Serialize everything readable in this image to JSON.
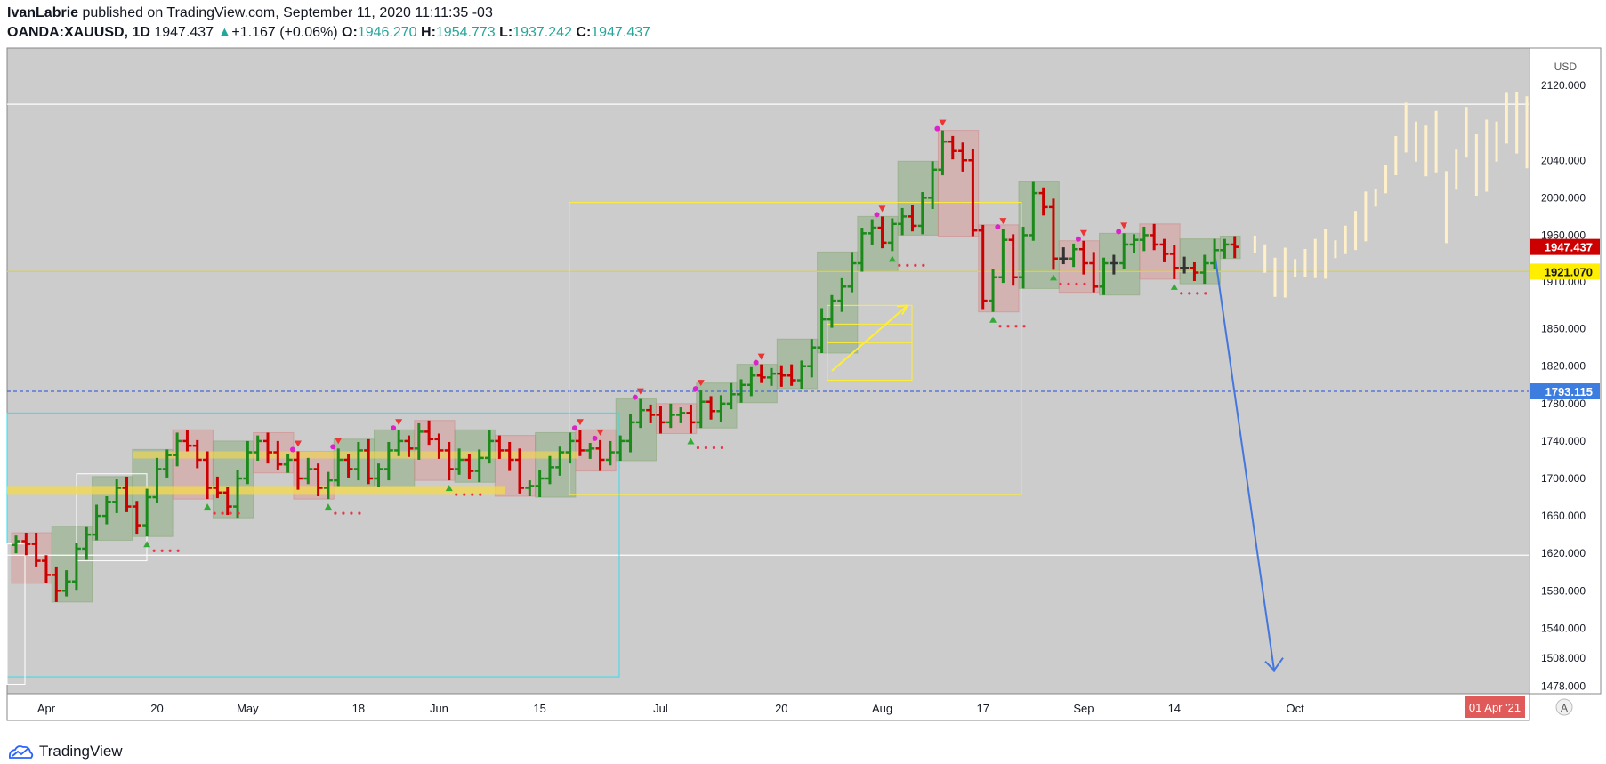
{
  "header": {
    "author": "IvanLabrie",
    "published_text": "published on TradingView.com, September 11, 2020 11:11:35 -03",
    "symbol": "OANDA:XAUUSD, 1D",
    "last": "1947.437",
    "change": "+1.167 (+0.06%)",
    "o_label": "O:",
    "o_value": "1946.270",
    "h_label": "H:",
    "h_value": "1954.773",
    "l_label": "L:",
    "l_value": "1937.242",
    "c_label": "C:",
    "c_value": "1947.437"
  },
  "footer": {
    "brand": "TradingView"
  },
  "currency": "USD",
  "auto_label": "A",
  "colors": {
    "pane": "#cccccc",
    "up": "#1b8a1b",
    "down": "#cc0000",
    "neutral": "#333333",
    "yellow": "#ffee33",
    "cyan": "#33ddee",
    "blue": "#4477dd",
    "projection": "#fff0c8",
    "magenta": "#dd22cc",
    "red_dots": "#ee3344"
  },
  "chart_data": {
    "type": "ohlc",
    "y_axis": {
      "range": [
        1470,
        2160
      ],
      "ticks": [
        "2120.000",
        "2040.000",
        "2000.000",
        "1960.000",
        "1910.000",
        "1860.000",
        "1820.000",
        "1780.000",
        "1740.000",
        "1700.000",
        "1660.000",
        "1620.000",
        "1580.000",
        "1540.000",
        "1508.000",
        "1478.000"
      ],
      "tick_values": [
        2120,
        2040,
        2000,
        1960,
        1910,
        1860,
        1820,
        1780,
        1740,
        1700,
        1660,
        1620,
        1580,
        1540,
        1508,
        1478
      ]
    },
    "x_axis": {
      "labels": [
        "Apr",
        "20",
        "May",
        "18",
        "Jun",
        "15",
        "Jul",
        "20",
        "Aug",
        "17",
        "Sep",
        "14",
        "Oct"
      ],
      "label_bar_index": [
        3,
        14,
        23,
        34,
        42,
        52,
        64,
        76,
        86,
        96,
        106,
        115,
        127
      ]
    },
    "price_tags": [
      {
        "value": 1947.437,
        "label": "1947.437",
        "color": "#cc0000",
        "text_color": "#ffffff"
      },
      {
        "value": 1921.07,
        "label": "1921.070",
        "color": "#ffee00",
        "text_color": "#131722"
      },
      {
        "value": 1793.115,
        "label": "1793.115",
        "color": "#3d7de0",
        "text_color": "#ffffff"
      }
    ],
    "date_tag": "01 Apr '21",
    "horizontal_lines": [
      {
        "value": 2100,
        "color": "#ffffff"
      },
      {
        "value": 1921.07,
        "color": "#e6d800"
      },
      {
        "value": 1793.115,
        "color": "#4466dd",
        "dashed": true
      },
      {
        "value": 1618,
        "color": "#ffffff"
      }
    ],
    "closes": [
      1633,
      1630,
      1612,
      1597,
      1580,
      1590,
      1625,
      1640,
      1660,
      1675,
      1690,
      1670,
      1650,
      1680,
      1710,
      1725,
      1740,
      1735,
      1720,
      1690,
      1685,
      1670,
      1700,
      1728,
      1740,
      1728,
      1715,
      1720,
      1700,
      1710,
      1690,
      1698,
      1720,
      1710,
      1730,
      1700,
      1710,
      1730,
      1740,
      1732,
      1750,
      1742,
      1730,
      1710,
      1720,
      1708,
      1722,
      1740,
      1730,
      1720,
      1690,
      1692,
      1700,
      1712,
      1728,
      1740,
      1730,
      1732,
      1720,
      1728,
      1740,
      1760,
      1773,
      1768,
      1760,
      1768,
      1770,
      1760,
      1782,
      1772,
      1780,
      1790,
      1800,
      1810,
      1808,
      1812,
      1810,
      1805,
      1820,
      1840,
      1870,
      1890,
      1905,
      1930,
      1962,
      1968,
      1952,
      1972,
      1980,
      1970,
      2000,
      2030,
      2060,
      2050,
      2040,
      1965,
      1890,
      1915,
      1955,
      1915,
      1960,
      2005,
      1990,
      1935,
      1935,
      1945,
      1930,
      1905,
      1930,
      1930,
      1950,
      1955,
      1960,
      1950,
      1940,
      1925,
      1925,
      1920,
      1930,
      1944,
      1950,
      1947.437
    ],
    "projection": [
      1950,
      1935,
      1915,
      1920,
      1925,
      1930,
      1935,
      1940,
      1945,
      1955,
      1965,
      1980,
      2000,
      2020,
      2045,
      2075,
      2060,
      2050,
      2060,
      1990,
      2030,
      2070,
      2035,
      2045,
      2060,
      2085,
      2080,
      2070,
      2015,
      1950,
      1890
    ]
  }
}
